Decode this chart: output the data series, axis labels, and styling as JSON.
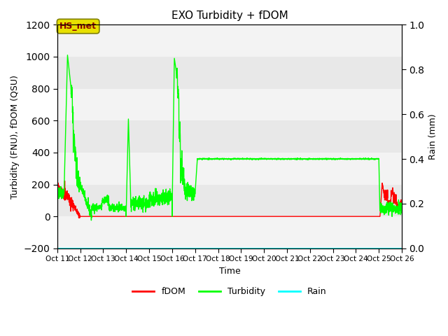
{
  "title": "EXO Turbidity + fDOM",
  "ylabel_left": "Turbidity (FNU), fDOM (QSU)",
  "ylabel_right": "Rain (mm)",
  "xlabel": "Time",
  "ylim_left": [
    -200,
    1200
  ],
  "ylim_right": [
    0.0,
    1.0
  ],
  "yticks_left": [
    -200,
    0,
    200,
    400,
    600,
    800,
    1000,
    1200
  ],
  "yticks_right": [
    0.0,
    0.2,
    0.4,
    0.6,
    0.8,
    1.0
  ],
  "x_tick_days": [
    11,
    12,
    13,
    14,
    15,
    16,
    17,
    18,
    19,
    20,
    21,
    22,
    23,
    24,
    25,
    26
  ],
  "x_tick_labels": [
    "Oct 11",
    "Oct 12",
    "Oct 13",
    "Oct 14",
    "Oct 15",
    "Oct 16",
    "Oct 17",
    "Oct 18",
    "Oct 19",
    "Oct 20",
    "Oct 21",
    "Oct 22",
    "Oct 23",
    "Oct 24",
    "Oct 25",
    "Oct 26"
  ],
  "plot_bg_color": "#e8e8e8",
  "band_color": "#d8d8d8",
  "annotation_text": "HS_met",
  "annotation_bg": "#e8e000",
  "annotation_border": "#808000",
  "annotation_text_color": "#8b0000",
  "fdom_color": "#ff0000",
  "turbidity_color": "#00ff00",
  "rain_color": "#00ffff",
  "legend_labels": [
    "fDOM",
    "Turbidity",
    "Rain"
  ],
  "xlim": [
    11,
    26
  ]
}
